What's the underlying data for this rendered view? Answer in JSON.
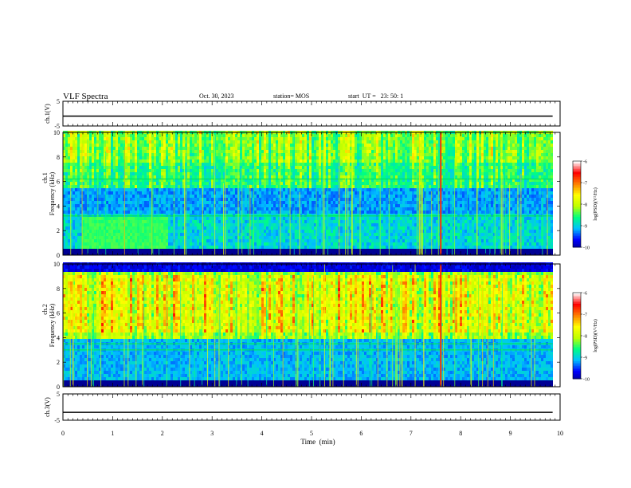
{
  "header": {
    "title": "VLF Spectra",
    "date": "Oct. 30, 2023",
    "station": "station= MOS",
    "start": "start  UT =   23: 50: 1"
  },
  "chart_data": [
    {
      "type": "line",
      "panel": "ch1-voltage",
      "ylabel": "ch.1(V)",
      "ylim": [
        -5,
        5
      ],
      "yticks": [
        "5",
        "-5"
      ],
      "x": [
        0,
        9.85
      ],
      "series": [
        {
          "values": [
            -1,
            -1
          ]
        }
      ]
    },
    {
      "type": "heatmap",
      "panel": "ch1-spectrogram",
      "ylabel": "Frequency (kHz)",
      "side_label": "ch.1",
      "ylim": [
        0,
        10
      ],
      "yticks": [
        "0",
        "2",
        "4",
        "6",
        "8",
        "10"
      ],
      "colorbar": {
        "label": "log(PSD)(V²/Hz)",
        "ticks": [
          "-6",
          "-7",
          "-8",
          "-9",
          "-10"
        ],
        "range": [
          -10,
          -6
        ]
      },
      "features": {
        "strong_band_khz": [
          0.3,
          3.4
        ],
        "elevated_block": {
          "t_min": [
            0.4,
            2.1
          ],
          "f_khz": [
            0.6,
            3.2
          ]
        },
        "persistent_line_khz": [
          3.2,
          6.2
        ],
        "bright_impulse_t_min": [
          7.6
        ]
      }
    },
    {
      "type": "heatmap",
      "panel": "ch2-spectrogram",
      "ylabel": "Frequency (kHz)",
      "side_label": "ch.2",
      "ylim": [
        0,
        10
      ],
      "yticks": [
        "0",
        "2",
        "4",
        "6",
        "8",
        "10"
      ],
      "colorbar": {
        "label": "log(PSD)(V²/Hz)",
        "ticks": [
          "-6",
          "-7",
          "-8",
          "-9",
          "-10"
        ],
        "range": [
          -10,
          -6
        ]
      },
      "features": {
        "strong_band_khz": [
          4.5,
          9.0
        ],
        "persistent_line_khz": [
          3.0,
          3.5
        ],
        "bright_impulse_t_min": [
          7.6
        ]
      }
    },
    {
      "type": "line",
      "panel": "ch3-voltage",
      "ylabel": "ch.3(V)",
      "ylim": [
        -5,
        5
      ],
      "yticks": [
        "5",
        "-5"
      ],
      "x": [
        0,
        9.85
      ],
      "series": [
        {
          "values": [
            -2,
            -2
          ]
        }
      ]
    }
  ],
  "xaxis": {
    "label": "Time  (min)",
    "ticks": [
      "0",
      "1",
      "2",
      "3",
      "4",
      "5",
      "6",
      "7",
      "8",
      "9",
      "10"
    ],
    "xlim": [
      0,
      10
    ]
  },
  "colors": {
    "colormap": [
      "#000080",
      "#0000ff",
      "#00c0ff",
      "#00ff80",
      "#c0ff00",
      "#ffff00",
      "#ff8000",
      "#ff0000",
      "#ffffff"
    ]
  }
}
